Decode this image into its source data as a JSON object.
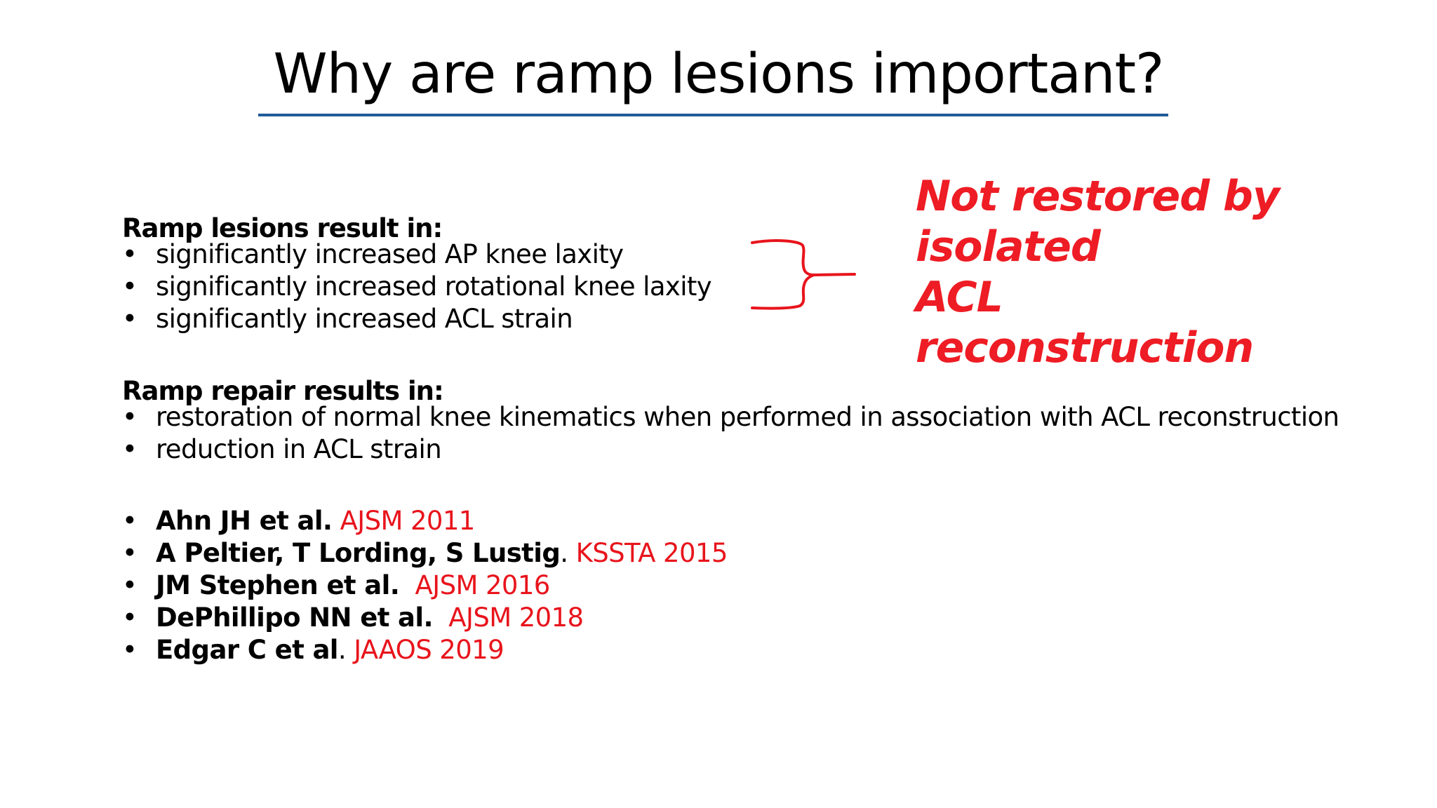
{
  "slide": {
    "title": "Why are ramp lesions important?",
    "accent_color": "#1f5c99",
    "highlight_color": "#ee1c24"
  },
  "lesions": {
    "heading": "Ramp lesions result in:",
    "items": [
      "significantly increased AP knee laxity",
      "significantly increased rotational knee laxity",
      "significantly increased ACL strain"
    ]
  },
  "repair": {
    "heading": "Ramp repair results in:",
    "items": [
      "restoration of normal knee kinematics when performed in association with ACL reconstruction",
      "reduction in ACL strain"
    ]
  },
  "references": [
    {
      "author": "Ahn JH et al.",
      "sep": " ",
      "journal": "AJSM 2011"
    },
    {
      "author": "A Peltier, T Lording, S Lustig",
      "sep": ". ",
      "journal": "KSSTA 2015"
    },
    {
      "author": "JM Stephen et al.",
      "sep": "  ",
      "journal": "AJSM 2016"
    },
    {
      "author": "DePhillipo NN et al.",
      "sep": "  ",
      "journal": "AJSM 2018"
    },
    {
      "author": "Edgar C et al",
      "sep": ". ",
      "journal": "JAAOS 2019"
    }
  ],
  "bullet_glyph": "•",
  "callout": {
    "lines": [
      "Not restored by",
      "isolated",
      "ACL",
      "reconstruction"
    ],
    "icon": "handdrawn-brace-icon"
  }
}
